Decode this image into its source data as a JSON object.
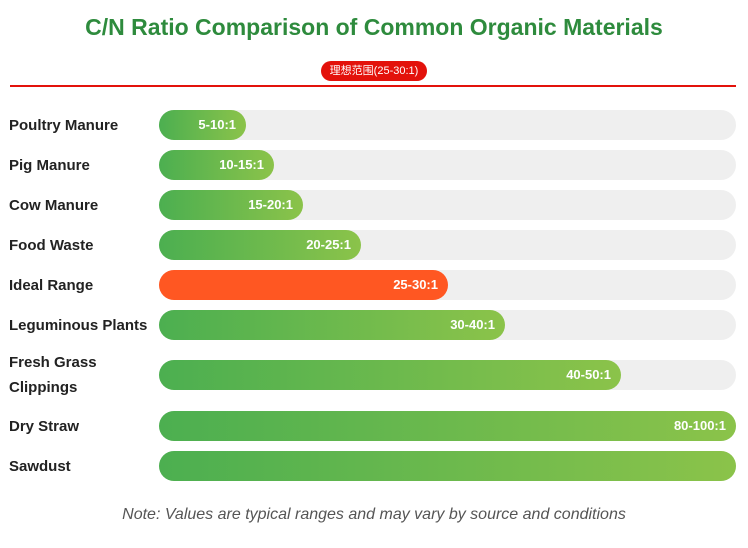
{
  "chart_data": {
    "type": "bar",
    "title": "C/N Ratio Comparison of Common Organic Materials",
    "badge": "理想范围(25-30:1)",
    "note": "Note: Values are typical ranges and may vary by source and conditions",
    "highlight_color": "#ff5722",
    "bar_colors": [
      "#4caf50",
      "#8bc34a"
    ],
    "title_color": "#2e8b3d",
    "accent_color": "#e3120b",
    "categories": [
      "Poultry Manure",
      "Pig Manure",
      "Cow Manure",
      "Food Waste",
      "Ideal Range",
      "Leguminous Plants",
      "Fresh Grass Clippings",
      "Dry Straw",
      "Sawdust"
    ],
    "bars": [
      {
        "label": "Poultry Manure",
        "range_label": "5-10:1",
        "fill": 0.15,
        "highlight": false
      },
      {
        "label": "Pig Manure",
        "range_label": "10-15:1",
        "fill": 0.2,
        "highlight": false
      },
      {
        "label": "Cow Manure",
        "range_label": "15-20:1",
        "fill": 0.25,
        "highlight": false
      },
      {
        "label": "Food Waste",
        "range_label": "20-25:1",
        "fill": 0.35,
        "highlight": false
      },
      {
        "label": "Ideal Range",
        "range_label": "25-30:1",
        "fill": 0.5,
        "highlight": true
      },
      {
        "label": "Leguminous Plants",
        "range_label": "30-40:1",
        "fill": 0.6,
        "highlight": false
      },
      {
        "label": "Fresh Grass Clippings",
        "range_label": "40-50:1",
        "fill": 0.8,
        "highlight": false
      },
      {
        "label": "Dry Straw",
        "range_label": "80-100:1",
        "fill": 1.0,
        "highlight": false
      },
      {
        "label": "Sawdust",
        "range_label": "",
        "fill": 1.0,
        "highlight": false
      }
    ]
  }
}
